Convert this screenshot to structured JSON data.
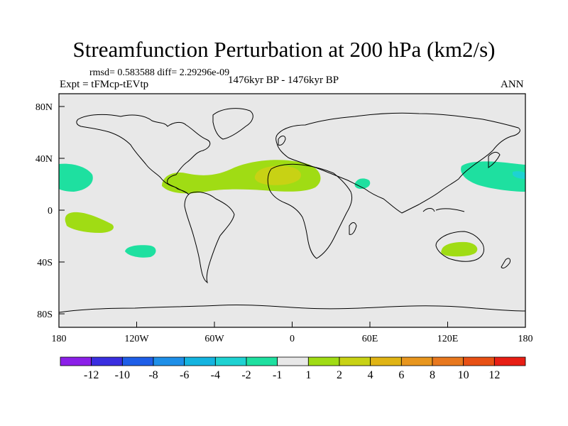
{
  "header": {
    "title": "Streamfunction Perturbation at 200 hPa (km2/s)",
    "stats": "rmsd= 0.583588 diff= 2.29296e-09",
    "experiment": "Expt = tFMcp-tEVtp",
    "period": "1476kyr BP - 1476kyr BP",
    "season": "ANN"
  },
  "map": {
    "background_color": "#e8e8e8",
    "lat_labels": [
      "80N",
      "40N",
      "0",
      "40S",
      "80S"
    ],
    "lon_labels": [
      "180",
      "120W",
      "60W",
      "0",
      "60E",
      "120E",
      "180"
    ]
  },
  "colorbar": {
    "colors": [
      "#8b1fe8",
      "#3a2ee0",
      "#1e5ee8",
      "#1e8fe8",
      "#14b4e0",
      "#1ed2d2",
      "#1ee0a0",
      "#e8e8e8",
      "#a0dc14",
      "#c8d214",
      "#e0b414",
      "#e8961e",
      "#e8781e",
      "#e85014",
      "#e81e14"
    ],
    "labels": [
      "-12",
      "-10",
      "-8",
      "-6",
      "-4",
      "-2",
      "-1",
      "1",
      "2",
      "4",
      "6",
      "8",
      "10",
      "12"
    ]
  }
}
